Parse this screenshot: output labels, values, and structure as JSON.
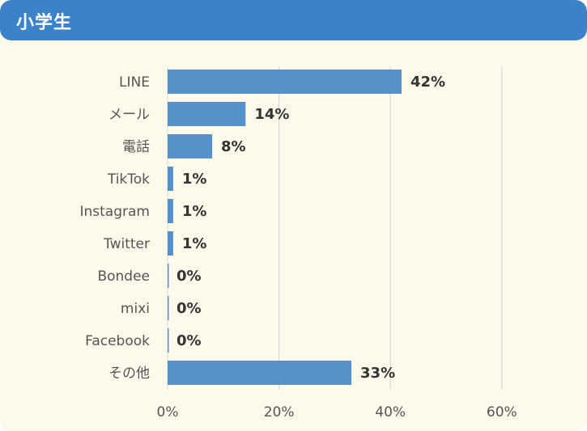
{
  "header": {
    "title": "小学生"
  },
  "colors": {
    "header_bg": "#3b82c8",
    "card_bg": "#fcfaeb",
    "bar": "#5592cc",
    "grid": "#d4d4d4"
  },
  "chart_data": {
    "type": "bar",
    "orientation": "horizontal",
    "categories": [
      "LINE",
      "メール",
      "電話",
      "TikTok",
      "Instagram",
      "Twitter",
      "Bondee",
      "mixi",
      "Facebook",
      "その他"
    ],
    "values": [
      42,
      14,
      8,
      1,
      1,
      1,
      0,
      0,
      0,
      33
    ],
    "value_labels": [
      "42%",
      "14%",
      "8%",
      "1%",
      "1%",
      "1%",
      "0%",
      "0%",
      "0%",
      "33%"
    ],
    "x_ticks": [
      "0%",
      "20%",
      "40%",
      "60%"
    ],
    "xlim": [
      0,
      60
    ],
    "grid": true,
    "legend": "none"
  }
}
